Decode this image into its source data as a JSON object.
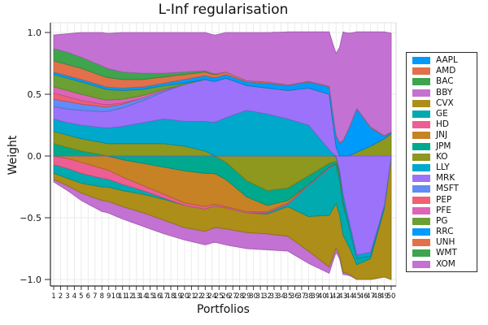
{
  "title": "L-Inf regularisation",
  "chart_data": {
    "type": "area",
    "stacked": true,
    "stacking_note": "positive values stack upward in series order; negative values stack downward in reverse series order; values estimated from pixels",
    "title": "L-Inf regularisation",
    "xlabel": "Portfolios",
    "ylabel": "Weight",
    "x_range": {
      "min": 1,
      "max": 50,
      "tick_step": 1
    },
    "ylim": [
      -1.07,
      1.07
    ],
    "yticks": [
      {
        "v": 1.0,
        "label": "1.0"
      },
      {
        "v": 0.5,
        "label": "0.5"
      },
      {
        "v": 0.0,
        "label": "0.0"
      },
      {
        "v": -0.5,
        "label": "−0.5"
      },
      {
        "v": -1.0,
        "label": "−1.0"
      }
    ],
    "grid": true,
    "legend_position": "right-outside",
    "x_keypoints": [
      1,
      3,
      5,
      8,
      11,
      14,
      17,
      20,
      23,
      26,
      29,
      32,
      35,
      38,
      41,
      43,
      45,
      47,
      49,
      50
    ],
    "series": [
      {
        "name": "AAPL",
        "color": "#009AFA",
        "values": [
          0,
          0,
          0,
          0,
          0,
          0,
          0,
          0,
          0,
          0,
          0,
          0,
          0,
          0,
          0,
          0,
          0,
          0,
          0,
          0
        ]
      },
      {
        "name": "AMD",
        "color": "#E2704B",
        "values": [
          0,
          0,
          0,
          0,
          0,
          0,
          0,
          0,
          0,
          0,
          0,
          0,
          0,
          0,
          0,
          0,
          0,
          0,
          0,
          0
        ]
      },
      {
        "name": "BAC",
        "color": "#3EA44E",
        "values": [
          0,
          0,
          0,
          0,
          0,
          0,
          0,
          0,
          0,
          0,
          0,
          0,
          0,
          0,
          0,
          0,
          0,
          0,
          0,
          0
        ]
      },
      {
        "name": "BBY",
        "color": "#C371D2",
        "values": [
          -0.02,
          -0.04,
          -0.06,
          -0.09,
          -0.1,
          -0.11,
          -0.11,
          -0.1,
          -0.11,
          -0.13,
          -0.13,
          -0.13,
          -0.12,
          -0.1,
          -0.05,
          -0.02,
          0,
          0,
          0,
          0
        ]
      },
      {
        "name": "CVX",
        "color": "#AC8E18",
        "values": [
          -0.05,
          -0.06,
          -0.08,
          -0.11,
          -0.13,
          -0.15,
          -0.17,
          -0.18,
          -0.18,
          -0.17,
          -0.16,
          -0.16,
          -0.24,
          -0.28,
          -0.42,
          -0.3,
          -0.12,
          -0.17,
          -0.55,
          -0.99
        ]
      },
      {
        "name": "GE",
        "color": "#00AAAE",
        "values": [
          -0.07,
          -0.08,
          -0.08,
          -0.07,
          -0.05,
          -0.03,
          -0.01,
          0,
          0,
          0,
          0,
          -0.01,
          -0.02,
          -0.25,
          -0.38,
          -0.25,
          -0.05,
          -0.02,
          -0.01,
          0
        ]
      },
      {
        "name": "HD",
        "color": "#ED5E93",
        "values": [
          -0.07,
          -0.08,
          -0.09,
          -0.08,
          -0.06,
          -0.04,
          -0.03,
          -0.02,
          -0.02,
          -0.01,
          -0.01,
          -0.01,
          -0.01,
          -0.01,
          -0.01,
          0,
          0,
          0,
          0,
          0
        ]
      },
      {
        "name": "JNJ",
        "color": "#C68225",
        "values": [
          0,
          -0.02,
          -0.05,
          -0.1,
          -0.14,
          -0.18,
          -0.22,
          -0.26,
          -0.27,
          -0.22,
          -0.12,
          -0.05,
          -0.02,
          0,
          0,
          0,
          0,
          0,
          0,
          0
        ]
      },
      {
        "name": "JPM",
        "color": "#00A98D",
        "values": [
          0.1,
          0.07,
          0.04,
          0.01,
          -0.03,
          -0.06,
          -0.09,
          -0.12,
          -0.14,
          -0.14,
          -0.13,
          -0.12,
          -0.1,
          -0.07,
          -0.03,
          -0.01,
          0,
          0,
          0,
          0
        ]
      },
      {
        "name": "KO",
        "color": "#8E971E",
        "values": [
          0.1,
          0.1,
          0.1,
          0.1,
          0.1,
          0.1,
          0.1,
          0.08,
          0.04,
          -0.05,
          -0.2,
          -0.28,
          -0.26,
          -0.16,
          -0.06,
          -0.02,
          0.03,
          0.08,
          0.14,
          0.18
        ]
      },
      {
        "name": "LLY",
        "color": "#00A8CB",
        "values": [
          0.1,
          0.1,
          0.11,
          0.12,
          0.14,
          0.17,
          0.2,
          0.2,
          0.24,
          0.31,
          0.37,
          0.34,
          0.3,
          0.25,
          0.05,
          -0.06,
          -0.03,
          -0.03,
          -0.02,
          -0.01
        ]
      },
      {
        "name": "MRK",
        "color": "#9B72F9",
        "values": [
          0.1,
          0.11,
          0.12,
          0.13,
          0.15,
          0.18,
          0.22,
          0.3,
          0.34,
          0.32,
          0.2,
          0.21,
          0.23,
          0.3,
          0.45,
          -0.3,
          -0.8,
          -0.78,
          -0.4,
          0
        ]
      },
      {
        "name": "MSFT",
        "color": "#618CF6",
        "values": [
          0.06,
          0.06,
          0.05,
          0.04,
          0.03,
          0.02,
          0.01,
          0,
          0,
          0,
          0,
          0,
          0,
          0,
          0,
          0,
          0,
          0,
          0,
          0
        ]
      },
      {
        "name": "PEP",
        "color": "#F05F73",
        "values": [
          0.05,
          0.04,
          0.03,
          0.02,
          0.01,
          0,
          0,
          0,
          0,
          0,
          0,
          0,
          0,
          0,
          0,
          0,
          0,
          0,
          0,
          0
        ]
      },
      {
        "name": "PFE",
        "color": "#DD64B6",
        "values": [
          0.05,
          0.05,
          0.05,
          0.04,
          0.03,
          0.02,
          0.01,
          0,
          0,
          0,
          0,
          0,
          0,
          0,
          0,
          0,
          0,
          0,
          0,
          0
        ]
      },
      {
        "name": "PG",
        "color": "#6CA035",
        "values": [
          0.1,
          0.1,
          0.1,
          0.09,
          0.07,
          0.05,
          0.03,
          0.01,
          0,
          0,
          0,
          0,
          0,
          0,
          0,
          0,
          0,
          0,
          0,
          0
        ]
      },
      {
        "name": "RRC",
        "color": "#009AFA",
        "values": [
          0.02,
          0.02,
          0.02,
          0.02,
          0.02,
          0.02,
          0.02,
          0.03,
          0.03,
          0.03,
          0.03,
          0.04,
          0.04,
          0.05,
          0.06,
          0.12,
          0.35,
          0.15,
          0.02,
          0.01
        ]
      },
      {
        "name": "UNH",
        "color": "#E2704B",
        "values": [
          0.09,
          0.09,
          0.09,
          0.08,
          0.07,
          0.06,
          0.05,
          0.04,
          0.03,
          0.02,
          0.01,
          0.01,
          0.005,
          0.005,
          0.005,
          0.005,
          0.005,
          0.005,
          0.005,
          0.005
        ]
      },
      {
        "name": "WMT",
        "color": "#3EA44E",
        "values": [
          0.1,
          0.1,
          0.09,
          0.08,
          0.06,
          0.05,
          0.03,
          0.02,
          0.01,
          0,
          0,
          0,
          0,
          0,
          0,
          0,
          0,
          0,
          0,
          0
        ]
      },
      {
        "name": "XOM",
        "color": "#C371D2",
        "values": [
          0.11,
          0.15,
          0.2,
          0.27,
          0.32,
          0.33,
          0.33,
          0.32,
          0.31,
          0.32,
          0.39,
          0.4,
          0.43,
          0.4,
          0.44,
          0.88,
          0.62,
          0.77,
          0.84,
          0.8
        ]
      }
    ]
  }
}
